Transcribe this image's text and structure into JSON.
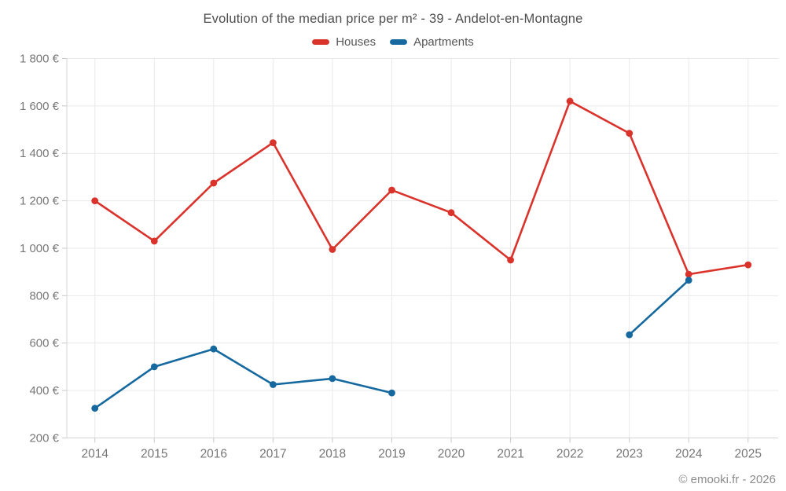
{
  "title": "Evolution of the median price per m² - 39 - Andelot-en-Montagne",
  "footer": "© emooki.fr - 2026",
  "colors": {
    "houses": "#da332c",
    "apartments": "#16699f",
    "grid": "#e9e9e9",
    "axis": "#d6d6d6",
    "tick": "#c9c9c9",
    "tick_label": "#777777"
  },
  "chart_data": {
    "type": "line",
    "title": "Evolution of the median price per m² - 39 - Andelot-en-Montagne",
    "categories": [
      "2014",
      "2015",
      "2016",
      "2017",
      "2018",
      "2019",
      "2020",
      "2021",
      "2022",
      "2023",
      "2024",
      "2025"
    ],
    "series": [
      {
        "name": "Houses",
        "color": "#da332c",
        "values": [
          1200,
          1030,
          1275,
          1445,
          995,
          1245,
          1150,
          950,
          1620,
          1485,
          890,
          930
        ]
      },
      {
        "name": "Apartments",
        "color": "#16699f",
        "values": [
          325,
          500,
          575,
          425,
          450,
          390,
          null,
          null,
          null,
          635,
          865,
          null
        ]
      }
    ],
    "ylim": [
      200,
      1800
    ],
    "ytick_step": 200,
    "ytick_labels": [
      "200 €",
      "400 €",
      "600 €",
      "800 €",
      "1 000 €",
      "1 200 €",
      "1 400 €",
      "1 600 €",
      "1 800 €"
    ],
    "grid": true,
    "legend_position": "top",
    "xlabel": "",
    "ylabel": ""
  }
}
